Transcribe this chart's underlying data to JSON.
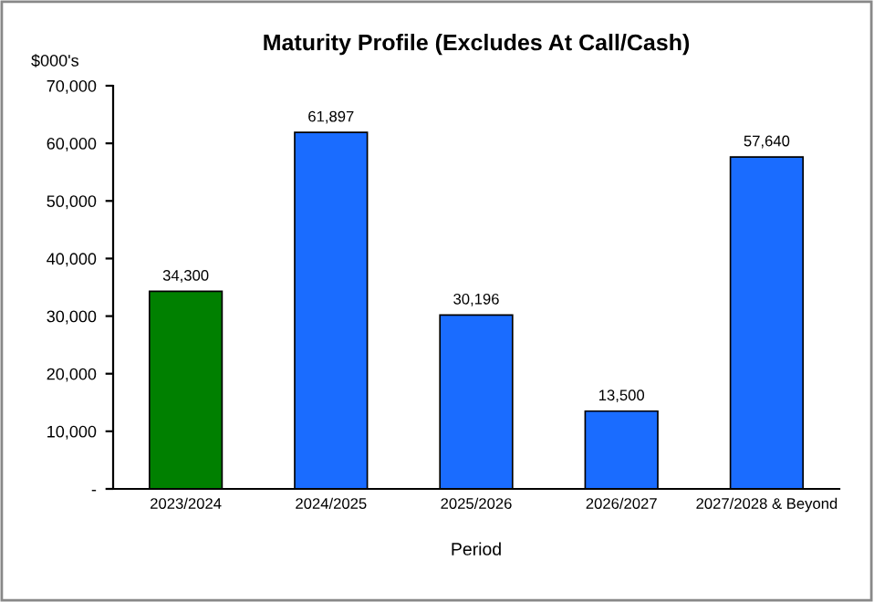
{
  "chart_data": {
    "type": "bar",
    "title": "Maturity Profile (Excludes At Call/Cash)",
    "ylabel": "$000's",
    "xlabel": "Period",
    "categories": [
      "2023/2024",
      "2024/2025",
      "2025/2026",
      "2026/2027",
      "2027/2028 & Beyond"
    ],
    "values": [
      34300,
      61897,
      30196,
      13500,
      57640
    ],
    "colors": [
      "#008000",
      "#1a6cff",
      "#1a6cff",
      "#1a6cff",
      "#1a6cff"
    ],
    "value_labels": [
      "34,300",
      "61,897",
      "30,196",
      "13,500",
      "57,640"
    ],
    "ylim": [
      0,
      70000
    ],
    "yticks": [
      {
        "value": 0,
        "label": "-"
      },
      {
        "value": 10000,
        "label": "10,000"
      },
      {
        "value": 20000,
        "label": "20,000"
      },
      {
        "value": 30000,
        "label": "30,000"
      },
      {
        "value": 40000,
        "label": "40,000"
      },
      {
        "value": 50000,
        "label": "50,000"
      },
      {
        "value": 60000,
        "label": "60,000"
      },
      {
        "value": 70000,
        "label": "70,000"
      }
    ],
    "grid": false
  }
}
